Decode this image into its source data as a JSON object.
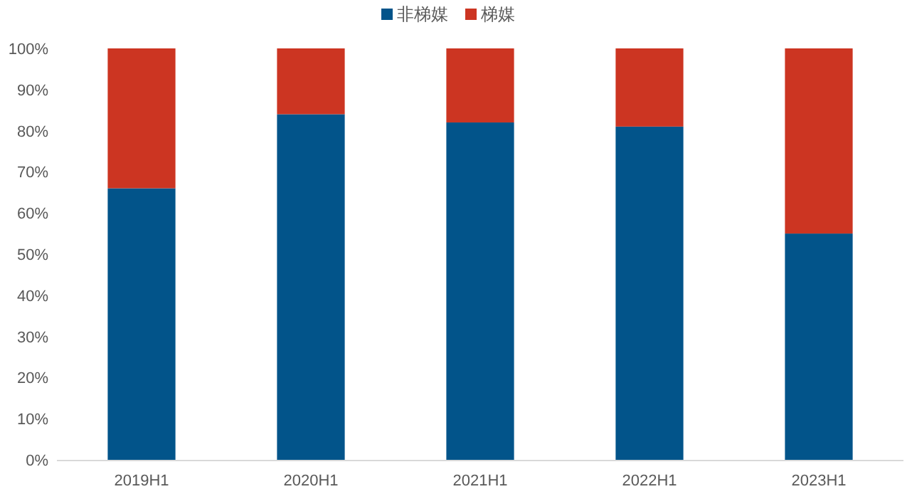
{
  "chart_data": {
    "type": "bar",
    "stacked": true,
    "legend": "top",
    "grid": false,
    "categories": [
      "2019H1",
      "2020H1",
      "2021H1",
      "2022H1",
      "2023H1"
    ],
    "series": [
      {
        "name": "非梯媒",
        "color": "#02548a",
        "values": [
          66,
          84,
          82,
          81,
          55
        ]
      },
      {
        "name": "梯媒",
        "color": "#cc3522",
        "values": [
          34,
          16,
          18,
          19,
          45
        ]
      }
    ],
    "ylim": [
      0,
      100
    ],
    "yticks": [
      {
        "value": 0,
        "label": "0%"
      },
      {
        "value": 10,
        "label": "10%"
      },
      {
        "value": 20,
        "label": "20%"
      },
      {
        "value": 30,
        "label": "30%"
      },
      {
        "value": 40,
        "label": "40%"
      },
      {
        "value": 50,
        "label": "50%"
      },
      {
        "value": 60,
        "label": "60%"
      },
      {
        "value": 70,
        "label": "70%"
      },
      {
        "value": 80,
        "label": "80%"
      },
      {
        "value": 90,
        "label": "90%"
      },
      {
        "value": 100,
        "label": "100%"
      }
    ]
  }
}
